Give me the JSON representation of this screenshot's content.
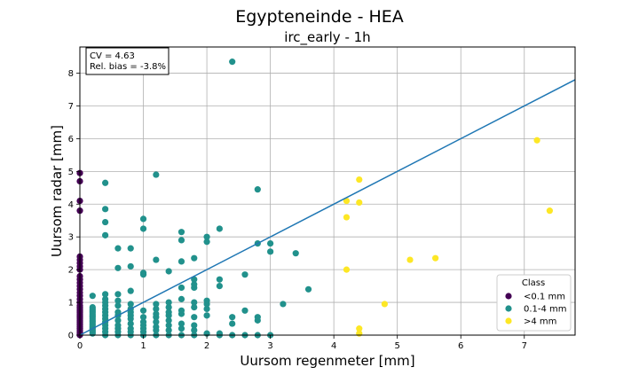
{
  "chart_data": {
    "type": "scatter",
    "title": "Egypteneinde - HEA",
    "subtitle": "irc_early - 1h",
    "xlabel": "Uursom regenmeter [mm]",
    "ylabel": "Uursom radar [mm]",
    "xlim": [
      0,
      7.8
    ],
    "ylim": [
      0,
      8.8
    ],
    "xticks": [
      "0",
      "1",
      "2",
      "3",
      "4",
      "5",
      "6",
      "7"
    ],
    "yticks": [
      "0",
      "1",
      "2",
      "3",
      "4",
      "5",
      "6",
      "7",
      "8"
    ],
    "grid": true,
    "stats": {
      "cv": "CV = 4.63",
      "bias": "Rel. bias = -3.8%"
    },
    "fit_line": {
      "slope": 1.0,
      "color": "#1f77b4"
    },
    "legend": {
      "title": "Class",
      "position": "lower-right",
      "entries": [
        {
          "label": "<0.1 mm",
          "color": "#440154"
        },
        {
          "label": "0.1-4 mm",
          "color": "#21918c"
        },
        {
          "label": ">4 mm",
          "color": "#fde725"
        }
      ]
    },
    "series": [
      {
        "name": "<0.1 mm",
        "color": "#440154",
        "points": [
          [
            0,
            0
          ],
          [
            0,
            0.05
          ],
          [
            0,
            0.1
          ],
          [
            0,
            0.15
          ],
          [
            0,
            0.2
          ],
          [
            0,
            0.25
          ],
          [
            0,
            0.3
          ],
          [
            0,
            0.35
          ],
          [
            0,
            0.4
          ],
          [
            0,
            0.45
          ],
          [
            0,
            0.5
          ],
          [
            0,
            0.55
          ],
          [
            0,
            0.6
          ],
          [
            0,
            0.65
          ],
          [
            0,
            0.7
          ],
          [
            0,
            0.75
          ],
          [
            0,
            0.8
          ],
          [
            0,
            0.85
          ],
          [
            0,
            0.9
          ],
          [
            0,
            1.0
          ],
          [
            0,
            1.1
          ],
          [
            0,
            1.2
          ],
          [
            0,
            1.3
          ],
          [
            0,
            1.4
          ],
          [
            0,
            1.5
          ],
          [
            0,
            1.6
          ],
          [
            0,
            1.7
          ],
          [
            0,
            1.8
          ],
          [
            0,
            2.0
          ],
          [
            0,
            2.1
          ],
          [
            0,
            2.2
          ],
          [
            0,
            2.3
          ],
          [
            0,
            2.4
          ],
          [
            0,
            3.8
          ],
          [
            0,
            4.1
          ],
          [
            0,
            4.7
          ],
          [
            0,
            4.95
          ]
        ]
      },
      {
        "name": "0.1-4 mm",
        "color": "#21918c",
        "points": [
          [
            0.2,
            0.05
          ],
          [
            0.2,
            0.1
          ],
          [
            0.2,
            0.15
          ],
          [
            0.2,
            0.2
          ],
          [
            0.2,
            0.25
          ],
          [
            0.2,
            0.3
          ],
          [
            0.2,
            0.35
          ],
          [
            0.2,
            0.4
          ],
          [
            0.2,
            0.45
          ],
          [
            0.2,
            0.5
          ],
          [
            0.2,
            0.55
          ],
          [
            0.2,
            0.6
          ],
          [
            0.2,
            0.65
          ],
          [
            0.2,
            0.7
          ],
          [
            0.2,
            0.75
          ],
          [
            0.2,
            0.8
          ],
          [
            0.2,
            0.85
          ],
          [
            0.2,
            1.2
          ],
          [
            0.4,
            0
          ],
          [
            0.4,
            0.1
          ],
          [
            0.4,
            0.2
          ],
          [
            0.4,
            0.3
          ],
          [
            0.4,
            0.4
          ],
          [
            0.4,
            0.5
          ],
          [
            0.4,
            0.6
          ],
          [
            0.4,
            0.7
          ],
          [
            0.4,
            0.8
          ],
          [
            0.4,
            0.9
          ],
          [
            0.4,
            1.0
          ],
          [
            0.4,
            1.1
          ],
          [
            0.4,
            1.25
          ],
          [
            0.4,
            3.05
          ],
          [
            0.4,
            3.45
          ],
          [
            0.4,
            3.85
          ],
          [
            0.4,
            4.65
          ],
          [
            0.6,
            0
          ],
          [
            0.6,
            0.1
          ],
          [
            0.6,
            0.2
          ],
          [
            0.6,
            0.3
          ],
          [
            0.6,
            0.45
          ],
          [
            0.6,
            0.6
          ],
          [
            0.6,
            0.7
          ],
          [
            0.6,
            0.9
          ],
          [
            0.6,
            1.05
          ],
          [
            0.6,
            1.25
          ],
          [
            0.6,
            2.05
          ],
          [
            0.6,
            2.65
          ],
          [
            0.8,
            0
          ],
          [
            0.8,
            0.1
          ],
          [
            0.8,
            0.2
          ],
          [
            0.8,
            0.35
          ],
          [
            0.8,
            0.5
          ],
          [
            0.8,
            0.6
          ],
          [
            0.8,
            0.7
          ],
          [
            0.8,
            0.8
          ],
          [
            0.8,
            0.95
          ],
          [
            0.8,
            1.35
          ],
          [
            0.8,
            2.1
          ],
          [
            0.8,
            2.65
          ],
          [
            1.0,
            0
          ],
          [
            1.0,
            0.1
          ],
          [
            1.0,
            0.2
          ],
          [
            1.0,
            0.3
          ],
          [
            1.0,
            0.4
          ],
          [
            1.0,
            0.55
          ],
          [
            1.0,
            0.75
          ],
          [
            1.0,
            1.85
          ],
          [
            1.0,
            1.9
          ],
          [
            1.0,
            3.25
          ],
          [
            1.0,
            3.55
          ],
          [
            1.2,
            0
          ],
          [
            1.2,
            0.15
          ],
          [
            1.2,
            0.25
          ],
          [
            1.2,
            0.4
          ],
          [
            1.2,
            0.55
          ],
          [
            1.2,
            0.65
          ],
          [
            1.2,
            0.8
          ],
          [
            1.2,
            0.95
          ],
          [
            1.2,
            2.3
          ],
          [
            1.2,
            4.9
          ],
          [
            1.4,
            0
          ],
          [
            1.4,
            0.15
          ],
          [
            1.4,
            0.3
          ],
          [
            1.4,
            0.45
          ],
          [
            1.4,
            0.6
          ],
          [
            1.4,
            0.7
          ],
          [
            1.4,
            0.85
          ],
          [
            1.4,
            1.0
          ],
          [
            1.4,
            1.95
          ],
          [
            1.6,
            0
          ],
          [
            1.6,
            0.2
          ],
          [
            1.6,
            0.35
          ],
          [
            1.6,
            0.65
          ],
          [
            1.6,
            0.75
          ],
          [
            1.6,
            1.1
          ],
          [
            1.6,
            1.45
          ],
          [
            1.6,
            2.25
          ],
          [
            1.6,
            2.9
          ],
          [
            1.6,
            3.15
          ],
          [
            1.8,
            0
          ],
          [
            1.8,
            0.15
          ],
          [
            1.8,
            0.3
          ],
          [
            1.8,
            0.55
          ],
          [
            1.8,
            0.85
          ],
          [
            1.8,
            1.0
          ],
          [
            1.8,
            1.45
          ],
          [
            1.8,
            1.55
          ],
          [
            1.8,
            1.7
          ],
          [
            1.8,
            2.35
          ],
          [
            2.0,
            0.05
          ],
          [
            2.0,
            0.6
          ],
          [
            2.0,
            0.8
          ],
          [
            2.0,
            0.95
          ],
          [
            2.0,
            1.05
          ],
          [
            2.0,
            2.85
          ],
          [
            2.0,
            3.0
          ],
          [
            2.2,
            0
          ],
          [
            2.2,
            0.05
          ],
          [
            2.2,
            1.5
          ],
          [
            2.2,
            1.7
          ],
          [
            2.2,
            3.25
          ],
          [
            2.4,
            0
          ],
          [
            2.4,
            0.35
          ],
          [
            2.4,
            0.55
          ],
          [
            2.4,
            8.35
          ],
          [
            2.6,
            0
          ],
          [
            2.6,
            0.75
          ],
          [
            2.6,
            1.85
          ],
          [
            2.8,
            0
          ],
          [
            2.8,
            0.45
          ],
          [
            2.8,
            0.55
          ],
          [
            2.8,
            2.8
          ],
          [
            2.8,
            4.45
          ],
          [
            3.0,
            0
          ],
          [
            3.0,
            2.55
          ],
          [
            3.0,
            2.8
          ],
          [
            3.2,
            0.95
          ],
          [
            3.4,
            2.5
          ],
          [
            3.6,
            1.4
          ]
        ]
      },
      {
        "name": ">4 mm",
        "color": "#fde725",
        "points": [
          [
            4.2,
            2.0
          ],
          [
            4.2,
            3.6
          ],
          [
            4.2,
            4.1
          ],
          [
            4.4,
            0.05
          ],
          [
            4.4,
            0.2
          ],
          [
            4.4,
            4.05
          ],
          [
            4.4,
            4.75
          ],
          [
            4.8,
            0.95
          ],
          [
            5.2,
            2.3
          ],
          [
            5.6,
            2.35
          ],
          [
            7.2,
            5.95
          ],
          [
            7.4,
            3.8
          ]
        ]
      }
    ]
  }
}
